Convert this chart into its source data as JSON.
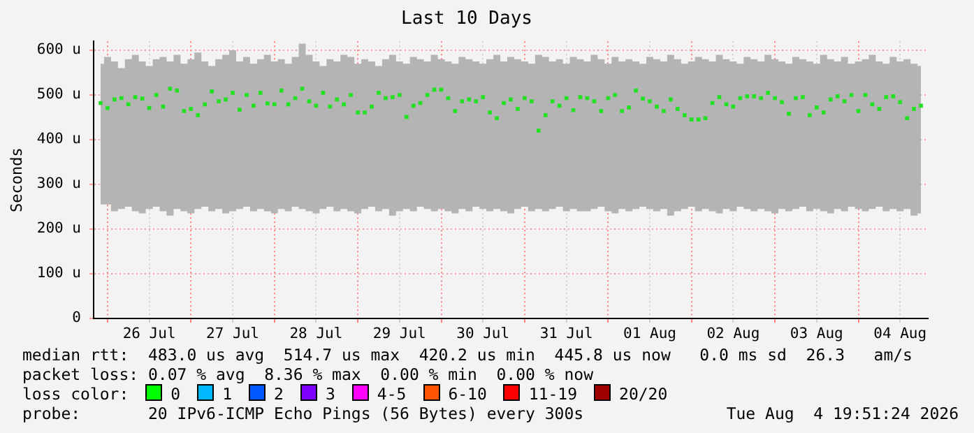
{
  "chart_data": {
    "type": "scatter",
    "title": "Last 10 Days",
    "ylabel": "Seconds",
    "x": [
      "2026-07-25T22:00",
      "2026-07-26T00:00",
      "2026-07-26T02:00",
      "2026-07-26T04:00",
      "2026-07-26T06:00",
      "2026-07-26T08:00",
      "2026-07-26T10:00",
      "2026-07-26T12:00",
      "2026-07-26T14:00",
      "2026-07-26T16:00",
      "2026-07-26T18:00",
      "2026-07-26T20:00",
      "2026-07-26T22:00",
      "2026-07-27T00:00",
      "2026-07-27T02:00",
      "2026-07-27T04:00",
      "2026-07-27T06:00",
      "2026-07-27T08:00",
      "2026-07-27T10:00",
      "2026-07-27T12:00",
      "2026-07-27T14:00",
      "2026-07-27T16:00",
      "2026-07-27T18:00",
      "2026-07-27T20:00",
      "2026-07-27T22:00",
      "2026-07-28T00:00",
      "2026-07-28T02:00",
      "2026-07-28T04:00",
      "2026-07-28T06:00",
      "2026-07-28T08:00",
      "2026-07-28T10:00",
      "2026-07-28T12:00",
      "2026-07-28T14:00",
      "2026-07-28T16:00",
      "2026-07-28T18:00",
      "2026-07-28T20:00",
      "2026-07-28T22:00",
      "2026-07-29T00:00",
      "2026-07-29T02:00",
      "2026-07-29T04:00",
      "2026-07-29T06:00",
      "2026-07-29T08:00",
      "2026-07-29T10:00",
      "2026-07-29T12:00",
      "2026-07-29T14:00",
      "2026-07-29T16:00",
      "2026-07-29T18:00",
      "2026-07-29T20:00",
      "2026-07-29T22:00",
      "2026-07-30T00:00",
      "2026-07-30T02:00",
      "2026-07-30T04:00",
      "2026-07-30T06:00",
      "2026-07-30T08:00",
      "2026-07-30T10:00",
      "2026-07-30T12:00",
      "2026-07-30T14:00",
      "2026-07-30T16:00",
      "2026-07-30T18:00",
      "2026-07-30T20:00",
      "2026-07-30T22:00",
      "2026-07-31T00:00",
      "2026-07-31T02:00",
      "2026-07-31T04:00",
      "2026-07-31T06:00",
      "2026-07-31T08:00",
      "2026-07-31T10:00",
      "2026-07-31T12:00",
      "2026-07-31T14:00",
      "2026-07-31T16:00",
      "2026-07-31T18:00",
      "2026-07-31T20:00",
      "2026-07-31T22:00",
      "2026-08-01T00:00",
      "2026-08-01T02:00",
      "2026-08-01T04:00",
      "2026-08-01T06:00",
      "2026-08-01T08:00",
      "2026-08-01T10:00",
      "2026-08-01T12:00",
      "2026-08-01T14:00",
      "2026-08-01T16:00",
      "2026-08-01T18:00",
      "2026-08-01T20:00",
      "2026-08-01T22:00",
      "2026-08-02T00:00",
      "2026-08-02T02:00",
      "2026-08-02T04:00",
      "2026-08-02T06:00",
      "2026-08-02T08:00",
      "2026-08-02T10:00",
      "2026-08-02T12:00",
      "2026-08-02T14:00",
      "2026-08-02T16:00",
      "2026-08-02T18:00",
      "2026-08-02T20:00",
      "2026-08-02T22:00",
      "2026-08-03T00:00",
      "2026-08-03T02:00",
      "2026-08-03T04:00",
      "2026-08-03T06:00",
      "2026-08-03T08:00",
      "2026-08-03T10:00",
      "2026-08-03T12:00",
      "2026-08-03T14:00",
      "2026-08-03T16:00",
      "2026-08-03T18:00",
      "2026-08-03T20:00",
      "2026-08-03T22:00",
      "2026-08-04T00:00",
      "2026-08-04T02:00",
      "2026-08-04T04:00",
      "2026-08-04T06:00",
      "2026-08-04T08:00",
      "2026-08-04T10:00",
      "2026-08-04T12:00",
      "2026-08-04T14:00",
      "2026-08-04T16:00",
      "2026-08-04T18:00"
    ],
    "series": [
      {
        "color": "#22e022",
        "values": [
          482,
          471,
          490,
          493,
          479,
          495,
          492,
          471,
          500,
          474,
          514,
          510,
          464,
          469,
          455,
          479,
          508,
          486,
          490,
          505,
          467,
          500,
          476,
          505,
          481,
          479,
          510,
          479,
          493,
          514,
          486,
          476,
          505,
          474,
          490,
          479,
          500,
          461,
          461,
          474,
          505,
          493,
          495,
          500,
          451,
          476,
          482,
          500,
          512,
          512,
          493,
          464,
          486,
          490,
          486,
          495,
          461,
          448,
          482,
          490,
          469,
          493,
          486,
          420,
          455,
          486,
          476,
          493,
          466,
          495,
          493,
          486,
          464,
          493,
          500,
          464,
          472,
          510,
          492,
          486,
          474,
          464,
          490,
          469,
          455,
          445,
          445,
          448,
          482,
          495,
          479,
          474,
          493,
          497,
          497,
          493,
          505,
          493,
          484,
          458,
          493,
          495,
          455,
          472,
          461,
          490,
          497,
          486,
          500,
          464,
          500,
          479,
          469,
          495,
          497,
          484,
          448,
          469,
          476
        ],
        "upper": [
          570,
          585,
          575,
          560,
          580,
          590,
          575,
          565,
          580,
          585,
          575,
          590,
          570,
          580,
          595,
          575,
          565,
          580,
          590,
          600,
          575,
          585,
          570,
          580,
          590,
          575,
          580,
          570,
          585,
          615,
          590,
          575,
          565,
          580,
          575,
          590,
          585,
          570,
          580,
          575,
          565,
          580,
          590,
          575,
          570,
          585,
          580,
          575,
          590,
          580,
          575,
          570,
          585,
          580,
          575,
          570,
          580,
          590,
          575,
          585,
          580,
          575,
          570,
          590,
          585,
          575,
          580,
          570,
          585,
          580,
          575,
          590,
          580,
          570,
          585,
          575,
          580,
          575,
          570,
          585,
          580,
          575,
          590,
          580,
          570,
          575,
          585,
          580,
          575,
          590,
          580,
          575,
          570,
          585,
          580,
          575,
          590,
          580,
          575,
          570,
          585,
          580,
          575,
          570,
          590,
          580,
          575,
          585,
          570,
          575,
          580,
          590,
          575,
          570,
          585,
          575,
          580,
          570,
          565
        ],
        "lower": [
          255,
          255,
          240,
          245,
          250,
          240,
          235,
          245,
          250,
          240,
          230,
          245,
          240,
          235,
          245,
          250,
          240,
          245,
          235,
          240,
          245,
          250,
          240,
          245,
          240,
          235,
          245,
          240,
          250,
          245,
          240,
          235,
          245,
          250,
          240,
          245,
          240,
          235,
          245,
          250,
          240,
          245,
          230,
          240,
          245,
          240,
          250,
          245,
          240,
          245,
          240,
          235,
          245,
          240,
          250,
          245,
          240,
          245,
          240,
          235,
          245,
          250,
          240,
          245,
          240,
          245,
          250,
          240,
          245,
          240,
          240,
          245,
          250,
          240,
          235,
          245,
          240,
          245,
          250,
          245,
          240,
          245,
          230,
          240,
          245,
          250,
          240,
          245,
          240,
          235,
          245,
          240,
          250,
          245,
          240,
          245,
          240,
          235,
          245,
          240,
          245,
          250,
          240,
          245,
          240,
          235,
          245,
          240,
          250,
          245,
          240,
          245,
          250,
          240,
          245,
          240,
          245,
          230,
          235
        ],
        "name": null
      }
    ],
    "xlim": [
      "2026-07-25T20:00",
      "2026-08-04T20:00"
    ],
    "xticks": [
      {
        "value": "2026-07-26T00:00",
        "label": null
      },
      {
        "value": "2026-07-26T12:00",
        "label": "26 Jul"
      },
      {
        "value": "2026-07-27T00:00",
        "label": null
      },
      {
        "value": "2026-07-27T12:00",
        "label": "27 Jul"
      },
      {
        "value": "2026-07-28T00:00",
        "label": null
      },
      {
        "value": "2026-07-28T12:00",
        "label": "28 Jul"
      },
      {
        "value": "2026-07-29T00:00",
        "label": null
      },
      {
        "value": "2026-07-29T12:00",
        "label": "29 Jul"
      },
      {
        "value": "2026-07-30T00:00",
        "label": null
      },
      {
        "value": "2026-07-30T12:00",
        "label": "30 Jul"
      },
      {
        "value": "2026-07-31T00:00",
        "label": null
      },
      {
        "value": "2026-07-31T12:00",
        "label": "31 Jul"
      },
      {
        "value": "2026-08-01T00:00",
        "label": null
      },
      {
        "value": "2026-08-01T12:00",
        "label": "01 Aug"
      },
      {
        "value": "2026-08-02T00:00",
        "label": null
      },
      {
        "value": "2026-08-02T12:00",
        "label": "02 Aug"
      },
      {
        "value": "2026-08-03T00:00",
        "label": null
      },
      {
        "value": "2026-08-03T12:00",
        "label": "03 Aug"
      },
      {
        "value": "2026-08-04T00:00",
        "label": null
      },
      {
        "value": "2026-08-04T12:00",
        "label": "04 Aug"
      }
    ],
    "ylim": [
      0,
      620
    ],
    "yticks": [
      0,
      {
        "value": 100,
        "label": "100 u"
      },
      {
        "value": 200,
        "label": "200 u"
      },
      {
        "value": 300,
        "label": "300 u"
      },
      {
        "value": 400,
        "label": "400 u"
      },
      {
        "value": 500,
        "label": "500 u"
      },
      {
        "value": 600,
        "label": "600 u"
      }
    ],
    "grid": true,
    "legend": false,
    "marker": "square",
    "annotations": [
      "median rtt:  483.0 us avg  514.7 us max  420.2 us min  445.8 us now   0.0 ms sd  26.3   am/s",
      "packet loss: 0.07 % avg  8.36 % max  0.00 % min  0.00 % now",
      "loss color:",
      "0",
      "1",
      "2",
      "3",
      "4-5",
      "6-10",
      "11-19",
      "20/20",
      "probe:       20 IPv6-ICMP Echo Pings (56 Bytes) every 300s",
      "Tue Aug  4 19:51:24 2026"
    ]
  }
}
